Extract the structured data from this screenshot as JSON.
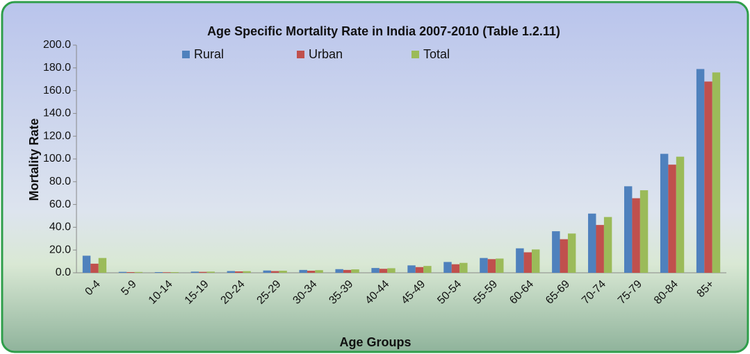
{
  "chart_data": {
    "type": "bar",
    "title": "Age Specific Mortality Rate in India 2007-2010 (Table 1.2.11)",
    "x_label": "Age Groups",
    "y_label": "Mortality Rate",
    "categories": [
      "0-4",
      "5-9",
      "10-14",
      "15-19",
      "20-24",
      "25-29",
      "30-34",
      "35-39",
      "40-44",
      "45-49",
      "50-54",
      "55-59",
      "60-64",
      "65-69",
      "70-74",
      "75-79",
      "80-84",
      "85+"
    ],
    "series": [
      {
        "name": "Rural",
        "color": "#4f81bd",
        "values": [
          15,
          0.8,
          0.6,
          1.0,
          1.5,
          2.0,
          2.5,
          3.2,
          4.2,
          6.5,
          9.5,
          13,
          21.5,
          36.5,
          52,
          76,
          104.5,
          179
        ]
      },
      {
        "name": "Urban",
        "color": "#c0504d",
        "values": [
          8,
          0.6,
          0.5,
          0.8,
          1.2,
          1.5,
          1.8,
          2.5,
          3.5,
          5.0,
          7.5,
          12,
          18,
          29.5,
          42,
          65.5,
          95,
          168
        ]
      },
      {
        "name": "Total",
        "color": "#9bbb59",
        "values": [
          13,
          0.7,
          0.6,
          1.0,
          1.4,
          1.8,
          2.3,
          3.0,
          4.0,
          6.0,
          8.7,
          12.5,
          20.5,
          34.5,
          49,
          72.5,
          102,
          176
        ]
      }
    ],
    "ylim": [
      0,
      200
    ],
    "yticks": [
      {
        "value": 0,
        "label": "0.0"
      },
      {
        "value": 20,
        "label": "20.0"
      },
      {
        "value": 40,
        "label": "40.0"
      },
      {
        "value": 60,
        "label": "60.0"
      },
      {
        "value": 80,
        "label": "80.0"
      },
      {
        "value": 100,
        "label": "100.0"
      },
      {
        "value": 120,
        "label": "120.0"
      },
      {
        "value": 140,
        "label": "140.0"
      },
      {
        "value": 160,
        "label": "160.0"
      },
      {
        "value": 180,
        "label": "180.0"
      },
      {
        "value": 200,
        "label": "200.0"
      }
    ]
  }
}
